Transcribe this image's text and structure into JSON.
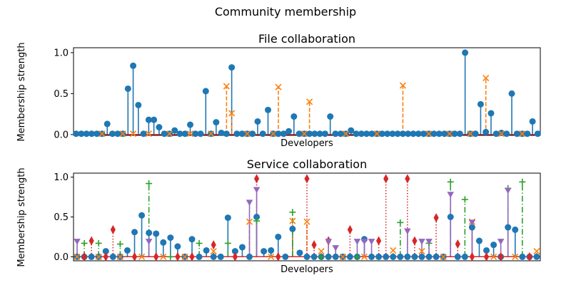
{
  "figure": {
    "suptitle": "Community membership"
  },
  "chart_data": [
    {
      "type": "stem",
      "title": "File collaboration",
      "xlabel": "Developers",
      "ylabel": "Membership strength",
      "ylim": [
        -0.01,
        1.06
      ],
      "yticks": [
        0.0,
        0.5,
        1.0
      ],
      "ytick_labels": [
        "0.0",
        "0.5",
        "1.0"
      ],
      "x_count": 90,
      "series": [
        {
          "color": "#1f77b4",
          "marker": "circle",
          "linestyle": "solid",
          "points": [
            [
              0,
              0.01
            ],
            [
              1,
              0.01
            ],
            [
              2,
              0.01
            ],
            [
              3,
              0.01
            ],
            [
              4,
              0.01
            ],
            [
              5,
              0.01
            ],
            [
              6,
              0.13
            ],
            [
              7,
              0.01
            ],
            [
              8,
              0.01
            ],
            [
              9,
              0.01
            ],
            [
              10,
              0.56
            ],
            [
              11,
              0.84
            ],
            [
              12,
              0.36
            ],
            [
              13,
              0.01
            ],
            [
              14,
              0.18
            ],
            [
              15,
              0.18
            ],
            [
              16,
              0.09
            ],
            [
              17,
              0.01
            ],
            [
              18,
              0.01
            ],
            [
              19,
              0.05
            ],
            [
              20,
              0.01
            ],
            [
              21,
              0.01
            ],
            [
              22,
              0.12
            ],
            [
              23,
              0.01
            ],
            [
              24,
              0.01
            ],
            [
              25,
              0.53
            ],
            [
              26,
              0.01
            ],
            [
              27,
              0.15
            ],
            [
              28,
              0.02
            ],
            [
              29,
              0.01
            ],
            [
              30,
              0.82
            ],
            [
              31,
              0.01
            ],
            [
              32,
              0.01
            ],
            [
              33,
              0.01
            ],
            [
              34,
              0.01
            ],
            [
              35,
              0.16
            ],
            [
              36,
              0.01
            ],
            [
              37,
              0.3
            ],
            [
              38,
              0.01
            ],
            [
              39,
              0.01
            ],
            [
              40,
              0.01
            ],
            [
              41,
              0.04
            ],
            [
              42,
              0.22
            ],
            [
              43,
              0.01
            ],
            [
              44,
              0.01
            ],
            [
              45,
              0.01
            ],
            [
              46,
              0.01
            ],
            [
              47,
              0.01
            ],
            [
              48,
              0.01
            ],
            [
              49,
              0.22
            ],
            [
              50,
              0.01
            ],
            [
              51,
              0.01
            ],
            [
              52,
              0.01
            ],
            [
              53,
              0.05
            ],
            [
              54,
              0.01
            ],
            [
              55,
              0.01
            ],
            [
              56,
              0.01
            ],
            [
              57,
              0.01
            ],
            [
              58,
              0.01
            ],
            [
              59,
              0.01
            ],
            [
              60,
              0.01
            ],
            [
              61,
              0.01
            ],
            [
              62,
              0.01
            ],
            [
              63,
              0.01
            ],
            [
              64,
              0.01
            ],
            [
              65,
              0.01
            ],
            [
              66,
              0.01
            ],
            [
              67,
              0.01
            ],
            [
              68,
              0.01
            ],
            [
              69,
              0.01
            ],
            [
              70,
              0.01
            ],
            [
              71,
              0.01
            ],
            [
              72,
              0.01
            ],
            [
              73,
              0.01
            ],
            [
              74,
              0.01
            ],
            [
              75,
              1.0
            ],
            [
              76,
              0.01
            ],
            [
              77,
              0.01
            ],
            [
              78,
              0.37
            ],
            [
              79,
              0.03
            ],
            [
              80,
              0.26
            ],
            [
              81,
              0.01
            ],
            [
              82,
              0.02
            ],
            [
              83,
              0.01
            ],
            [
              84,
              0.5
            ],
            [
              85,
              0.01
            ],
            [
              86,
              0.01
            ],
            [
              87,
              0.01
            ],
            [
              88,
              0.16
            ],
            [
              89,
              0.01
            ]
          ]
        },
        {
          "color": "#ff7f0e",
          "marker": "x",
          "linestyle": "dashed",
          "points": [
            [
              5,
              0.01
            ],
            [
              9,
              0.01
            ],
            [
              11,
              0.01
            ],
            [
              14,
              0.01
            ],
            [
              18,
              0.01
            ],
            [
              22,
              0.01
            ],
            [
              26,
              0.01
            ],
            [
              29,
              0.59
            ],
            [
              30,
              0.26
            ],
            [
              33,
              0.01
            ],
            [
              38,
              0.01
            ],
            [
              39,
              0.58
            ],
            [
              44,
              0.01
            ],
            [
              45,
              0.4
            ],
            [
              52,
              0.01
            ],
            [
              58,
              0.01
            ],
            [
              63,
              0.6
            ],
            [
              68,
              0.01
            ],
            [
              72,
              0.01
            ],
            [
              76,
              0.01
            ],
            [
              79,
              0.69
            ],
            [
              82,
              0.01
            ],
            [
              86,
              0.01
            ]
          ]
        }
      ]
    },
    {
      "type": "stem",
      "title": "Service collaboration",
      "xlabel": "Developers",
      "ylabel": "Membership strength",
      "ylim": [
        -0.05,
        1.05
      ],
      "yticks": [
        0.0,
        0.5,
        1.0
      ],
      "ytick_labels": [
        "0.0",
        "0.5",
        "1.0"
      ],
      "x_count": 65,
      "series": [
        {
          "color": "#1f77b4",
          "marker": "circle",
          "linestyle": "solid",
          "points": [
            [
              0,
              0.0
            ],
            [
              1,
              0.0
            ],
            [
              2,
              0.0
            ],
            [
              3,
              0.0
            ],
            [
              4,
              0.07
            ],
            [
              5,
              0.0
            ],
            [
              6,
              0.0
            ],
            [
              7,
              0.08
            ],
            [
              8,
              0.31
            ],
            [
              9,
              0.52
            ],
            [
              10,
              0.3
            ],
            [
              11,
              0.29
            ],
            [
              12,
              0.18
            ],
            [
              13,
              0.24
            ],
            [
              14,
              0.13
            ],
            [
              15,
              0.0
            ],
            [
              16,
              0.22
            ],
            [
              17,
              0.0
            ],
            [
              18,
              0.08
            ],
            [
              19,
              0.0
            ],
            [
              20,
              0.0
            ],
            [
              21,
              0.49
            ],
            [
              22,
              0.07
            ],
            [
              23,
              0.12
            ],
            [
              24,
              0.0
            ],
            [
              25,
              0.5
            ],
            [
              26,
              0.07
            ],
            [
              27,
              0.08
            ],
            [
              28,
              0.25
            ],
            [
              29,
              0.0
            ],
            [
              30,
              0.35
            ],
            [
              31,
              0.05
            ],
            [
              32,
              0.0
            ],
            [
              33,
              0.0
            ],
            [
              34,
              0.0
            ],
            [
              35,
              0.0
            ],
            [
              36,
              0.0
            ],
            [
              37,
              0.0
            ],
            [
              38,
              0.0
            ],
            [
              39,
              0.0
            ],
            [
              40,
              0.22
            ],
            [
              41,
              0.0
            ],
            [
              42,
              0.0
            ],
            [
              43,
              0.0
            ],
            [
              44,
              0.0
            ],
            [
              45,
              0.0
            ],
            [
              46,
              0.0
            ],
            [
              47,
              0.0
            ],
            [
              48,
              0.0
            ],
            [
              49,
              0.0
            ],
            [
              50,
              0.0
            ],
            [
              51,
              0.0
            ],
            [
              52,
              0.5
            ],
            [
              53,
              0.0
            ],
            [
              54,
              0.0
            ],
            [
              55,
              0.37
            ],
            [
              56,
              0.2
            ],
            [
              57,
              0.08
            ],
            [
              58,
              0.15
            ],
            [
              59,
              0.0
            ],
            [
              60,
              0.37
            ],
            [
              61,
              0.34
            ],
            [
              62,
              0.0
            ],
            [
              63,
              0.0
            ],
            [
              64,
              0.0
            ]
          ]
        },
        {
          "color": "#ff7f0e",
          "marker": "x",
          "linestyle": "dashed",
          "points": [
            [
              0,
              0.0
            ],
            [
              3,
              0.0
            ],
            [
              6,
              0.0
            ],
            [
              9,
              0.0
            ],
            [
              12,
              0.0
            ],
            [
              15,
              0.0
            ],
            [
              19,
              0.07
            ],
            [
              24,
              0.44
            ],
            [
              27,
              0.0
            ],
            [
              30,
              0.45
            ],
            [
              32,
              0.44
            ],
            [
              34,
              0.07
            ],
            [
              37,
              0.0
            ],
            [
              40,
              0.0
            ],
            [
              44,
              0.08
            ],
            [
              48,
              0.07
            ],
            [
              51,
              0.0
            ],
            [
              55,
              0.44
            ],
            [
              58,
              0.0
            ],
            [
              61,
              0.0
            ],
            [
              64,
              0.07
            ]
          ]
        },
        {
          "color": "#2ca02c",
          "marker": "plus",
          "linestyle": "dashdot",
          "points": [
            [
              1,
              0.17
            ],
            [
              3,
              0.17
            ],
            [
              6,
              0.16
            ],
            [
              10,
              0.92
            ],
            [
              13,
              0.0
            ],
            [
              17,
              0.17
            ],
            [
              21,
              0.17
            ],
            [
              25,
              0.45
            ],
            [
              30,
              0.56
            ],
            [
              34,
              0.0
            ],
            [
              39,
              0.0
            ],
            [
              45,
              0.43
            ],
            [
              49,
              0.17
            ],
            [
              52,
              0.94
            ],
            [
              54,
              0.72
            ],
            [
              60,
              0.86
            ],
            [
              62,
              0.94
            ]
          ]
        },
        {
          "color": "#d62728",
          "marker": "thin_diamond",
          "linestyle": "dotted",
          "points": [
            [
              1,
              0.0
            ],
            [
              2,
              0.2
            ],
            [
              4,
              0.0
            ],
            [
              5,
              0.34
            ],
            [
              8,
              0.0
            ],
            [
              11,
              0.0
            ],
            [
              14,
              0.0
            ],
            [
              16,
              0.0
            ],
            [
              19,
              0.15
            ],
            [
              22,
              0.0
            ],
            [
              25,
              0.98
            ],
            [
              28,
              0.0
            ],
            [
              32,
              0.98
            ],
            [
              33,
              0.15
            ],
            [
              35,
              0.2
            ],
            [
              38,
              0.34
            ],
            [
              42,
              0.2
            ],
            [
              43,
              0.98
            ],
            [
              46,
              0.98
            ],
            [
              47,
              0.2
            ],
            [
              50,
              0.49
            ],
            [
              53,
              0.16
            ],
            [
              55,
              0.0
            ],
            [
              57,
              0.0
            ],
            [
              59,
              0.0
            ],
            [
              63,
              0.0
            ]
          ]
        },
        {
          "color": "#9467bd",
          "marker": "tri_down",
          "linestyle": "solid",
          "points": [
            [
              0,
              0.19
            ],
            [
              10,
              0.19
            ],
            [
              24,
              0.68
            ],
            [
              25,
              0.84
            ],
            [
              35,
              0.19
            ],
            [
              36,
              0.11
            ],
            [
              39,
              0.19
            ],
            [
              40,
              0.19
            ],
            [
              41,
              0.19
            ],
            [
              46,
              0.32
            ],
            [
              48,
              0.19
            ],
            [
              49,
              0.19
            ],
            [
              52,
              0.78
            ],
            [
              55,
              0.43
            ],
            [
              59,
              0.19
            ],
            [
              60,
              0.83
            ]
          ]
        }
      ]
    }
  ]
}
